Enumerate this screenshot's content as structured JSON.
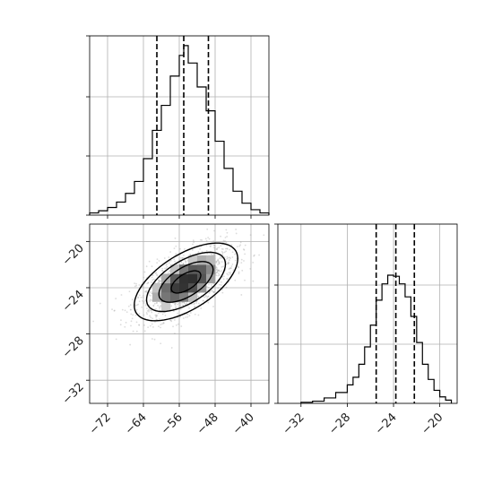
{
  "chart_data": {
    "type": "corner",
    "parameters": [
      {
        "name": "",
        "range": [
          -76,
          -36
        ],
        "ticks": [
          -72,
          -64,
          -56,
          -48,
          -40
        ],
        "tick_labels": [
          "−72",
          "−64",
          "−56",
          "−48",
          "−40"
        ],
        "quantiles": [
          -61,
          -55,
          -49.5
        ],
        "histogram": {
          "bin_edges": [
            -76,
            -74,
            -72,
            -70,
            -68,
            -66,
            -64,
            -62,
            -60,
            -58,
            -56,
            -55,
            -54,
            -52,
            -50,
            -48,
            -46,
            -44,
            -42,
            -40,
            -38,
            -36
          ],
          "counts": [
            2,
            4,
            7,
            12,
            20,
            31,
            52,
            78,
            101,
            128,
            147,
            156,
            140,
            118,
            96,
            68,
            43,
            22,
            11,
            5,
            2
          ]
        }
      },
      {
        "name": "",
        "range": [
          -34,
          -18.5
        ],
        "ticks": [
          -32,
          -28,
          -24,
          -20
        ],
        "tick_labels": [
          "−32",
          "−28",
          "−24",
          "−20"
        ],
        "quantiles": [
          -25.5,
          -23.8,
          -22.2
        ],
        "histogram": {
          "bin_edges": [
            -32,
            -31,
            -30,
            -29,
            -28,
            -27.5,
            -27,
            -26.5,
            -26,
            -25.5,
            -25,
            -24.5,
            -24,
            -23.5,
            -23,
            -22.5,
            -22,
            -21.5,
            -21,
            -20.5,
            -20,
            -19.5,
            -19
          ],
          "counts": [
            1,
            2,
            5,
            10,
            17,
            24,
            36,
            52,
            72,
            95,
            110,
            118,
            117,
            110,
            98,
            80,
            56,
            36,
            22,
            12,
            6,
            3
          ]
        }
      }
    ],
    "joint": {
      "x_param": 0,
      "y_param": 1,
      "mean": [
        -54.5,
        -23.5
      ],
      "sd": [
        5.5,
        1.6
      ],
      "correlation": 0.6,
      "contour_levels_sigma": [
        0.6,
        1.1,
        1.6,
        2.1
      ]
    },
    "histogram_ylim": [
      0,
      165
    ],
    "grid": true,
    "legend": "none"
  }
}
